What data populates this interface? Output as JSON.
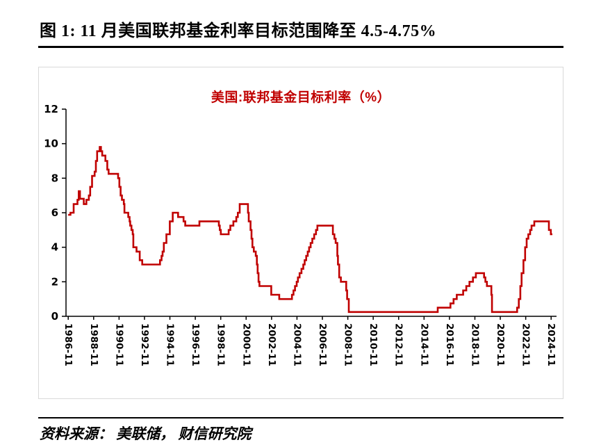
{
  "figure": {
    "title": "图 1: 11 月美国联邦基金利率目标范围降至 4.5-4.75%",
    "source": "资料来源： 美联储， 财信研究院"
  },
  "chart_data": {
    "type": "line",
    "step": "post",
    "title": "美国:联邦基金目标利率（%）",
    "xlabel": "",
    "ylabel": "",
    "grid": false,
    "legend": "none",
    "line_color": "#C00000",
    "title_color": "#C00000",
    "axis_color": "#000000",
    "ylim": [
      0,
      12
    ],
    "yticks": [
      0,
      2,
      4,
      6,
      8,
      10,
      12
    ],
    "x_range": [
      1986.7,
      2025.3
    ],
    "xticks": [
      "1986-11",
      "1988-11",
      "1990-11",
      "1992-11",
      "1994-11",
      "1996-11",
      "1998-11",
      "2000-11",
      "2002-11",
      "2004-11",
      "2006-11",
      "2008-11",
      "2010-11",
      "2012-11",
      "2014-11",
      "2016-11",
      "2018-11",
      "2020-11",
      "2022-11",
      "2024-11"
    ],
    "xtick_positions": [
      1986.875,
      1988.875,
      1990.875,
      1992.875,
      1994.875,
      1996.875,
      1998.875,
      2000.875,
      2002.875,
      2004.875,
      2006.875,
      2008.875,
      2010.875,
      2012.875,
      2014.875,
      2016.875,
      2018.875,
      2020.875,
      2022.875,
      2024.875
    ],
    "series": [
      {
        "name": "美国:联邦基金目标利率(%)",
        "points": [
          [
            1986.87,
            5.88
          ],
          [
            1987.05,
            6
          ],
          [
            1987.3,
            6.5
          ],
          [
            1987.6,
            6.75
          ],
          [
            1987.7,
            7.25
          ],
          [
            1987.8,
            6.81
          ],
          [
            1988.1,
            6.5
          ],
          [
            1988.3,
            6.75
          ],
          [
            1988.5,
            7
          ],
          [
            1988.6,
            7.5
          ],
          [
            1988.75,
            8.13
          ],
          [
            1988.95,
            8.38
          ],
          [
            1989.05,
            9
          ],
          [
            1989.15,
            9.56
          ],
          [
            1989.35,
            9.81
          ],
          [
            1989.45,
            9.56
          ],
          [
            1989.55,
            9.31
          ],
          [
            1989.8,
            9
          ],
          [
            1989.95,
            8.5
          ],
          [
            1990.05,
            8.25
          ],
          [
            1990.8,
            8
          ],
          [
            1990.9,
            7.5
          ],
          [
            1991,
            7
          ],
          [
            1991.1,
            6.75
          ],
          [
            1991.25,
            6.5
          ],
          [
            1991.3,
            6
          ],
          [
            1991.6,
            5.75
          ],
          [
            1991.7,
            5.5
          ],
          [
            1991.75,
            5.25
          ],
          [
            1991.85,
            5
          ],
          [
            1991.95,
            4.75
          ],
          [
            1992,
            4
          ],
          [
            1992.25,
            3.75
          ],
          [
            1992.5,
            3.25
          ],
          [
            1992.7,
            3
          ],
          [
            1994.1,
            3.25
          ],
          [
            1994.22,
            3.5
          ],
          [
            1994.3,
            3.75
          ],
          [
            1994.4,
            4.25
          ],
          [
            1994.6,
            4.75
          ],
          [
            1994.87,
            5.5
          ],
          [
            1995.1,
            6
          ],
          [
            1995.52,
            5.75
          ],
          [
            1995.95,
            5.5
          ],
          [
            1996.08,
            5.25
          ],
          [
            1997.2,
            5.5
          ],
          [
            1998.73,
            5.25
          ],
          [
            1998.8,
            5
          ],
          [
            1998.88,
            4.75
          ],
          [
            1999.5,
            5
          ],
          [
            1999.63,
            5.25
          ],
          [
            1999.87,
            5.5
          ],
          [
            2000.1,
            5.75
          ],
          [
            2000.22,
            6
          ],
          [
            2000.37,
            6.5
          ],
          [
            2001.02,
            6
          ],
          [
            2001.08,
            5.5
          ],
          [
            2001.22,
            5
          ],
          [
            2001.3,
            4.5
          ],
          [
            2001.37,
            4
          ],
          [
            2001.48,
            3.75
          ],
          [
            2001.63,
            3.5
          ],
          [
            2001.72,
            3
          ],
          [
            2001.78,
            2.5
          ],
          [
            2001.85,
            2
          ],
          [
            2001.92,
            1.75
          ],
          [
            2002.85,
            1.25
          ],
          [
            2003.48,
            1
          ],
          [
            2004.48,
            1.25
          ],
          [
            2004.6,
            1.5
          ],
          [
            2004.72,
            1.75
          ],
          [
            2004.85,
            2
          ],
          [
            2004.95,
            2.25
          ],
          [
            2005.08,
            2.5
          ],
          [
            2005.23,
            2.75
          ],
          [
            2005.37,
            3
          ],
          [
            2005.48,
            3.25
          ],
          [
            2005.6,
            3.5
          ],
          [
            2005.72,
            3.75
          ],
          [
            2005.83,
            4
          ],
          [
            2005.95,
            4.25
          ],
          [
            2006.08,
            4.5
          ],
          [
            2006.23,
            4.75
          ],
          [
            2006.37,
            5
          ],
          [
            2006.48,
            5.25
          ],
          [
            2007.7,
            4.75
          ],
          [
            2007.82,
            4.5
          ],
          [
            2007.92,
            4.25
          ],
          [
            2008.05,
            3.5
          ],
          [
            2008.1,
            3
          ],
          [
            2008.2,
            2.25
          ],
          [
            2008.33,
            2
          ],
          [
            2008.75,
            1.5
          ],
          [
            2008.82,
            1
          ],
          [
            2008.95,
            0.25
          ],
          [
            2015.95,
            0.5
          ],
          [
            2016.95,
            0.75
          ],
          [
            2017.2,
            1
          ],
          [
            2017.45,
            1.25
          ],
          [
            2017.95,
            1.5
          ],
          [
            2018.2,
            1.75
          ],
          [
            2018.45,
            2
          ],
          [
            2018.72,
            2.25
          ],
          [
            2018.95,
            2.5
          ],
          [
            2019.6,
            2.25
          ],
          [
            2019.7,
            2
          ],
          [
            2019.82,
            1.75
          ],
          [
            2020.17,
            1.25
          ],
          [
            2020.22,
            0.25
          ],
          [
            2022.2,
            0.5
          ],
          [
            2022.33,
            1
          ],
          [
            2022.45,
            1.75
          ],
          [
            2022.55,
            2.5
          ],
          [
            2022.7,
            3.25
          ],
          [
            2022.83,
            4
          ],
          [
            2022.95,
            4.5
          ],
          [
            2023.08,
            4.75
          ],
          [
            2023.22,
            5
          ],
          [
            2023.33,
            5.25
          ],
          [
            2023.55,
            5.5
          ],
          [
            2024.7,
            5
          ],
          [
            2024.85,
            4.75
          ],
          [
            2024.97,
            4.75
          ]
        ]
      }
    ]
  }
}
